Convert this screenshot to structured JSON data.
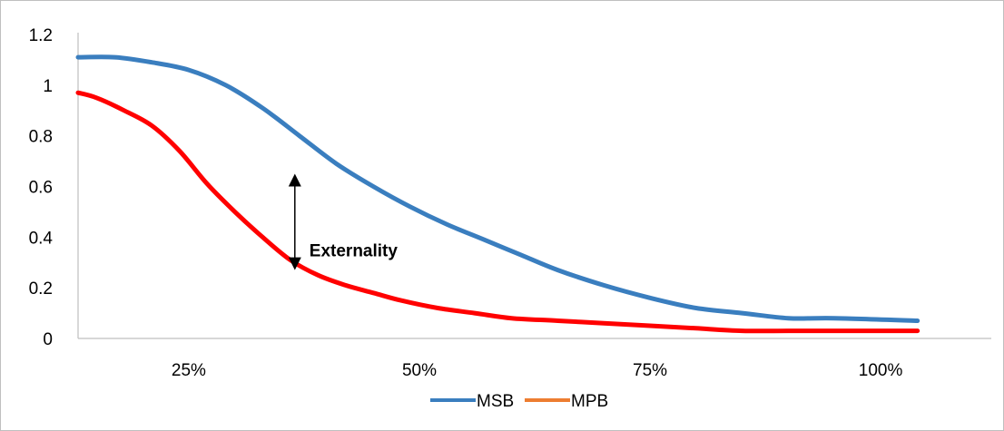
{
  "chart_data": {
    "type": "line",
    "title": "",
    "xlabel": "",
    "ylabel": "",
    "x_tick_labels": [
      "25%",
      "50%",
      "75%",
      "100%"
    ],
    "x_ticks_percent": [
      25,
      50,
      75,
      100
    ],
    "xlim_percent": [
      13,
      112
    ],
    "y_tick_labels": [
      "0",
      "0.2",
      "0.4",
      "0.6",
      "0.8",
      "1",
      "1.2"
    ],
    "y_ticks": [
      0,
      0.2,
      0.4,
      0.6,
      0.8,
      1,
      1.2
    ],
    "ylim": [
      0,
      1.2
    ],
    "grid": false,
    "legend_position": "bottom",
    "series": [
      {
        "name": "MSB",
        "color": "#3a7ebf",
        "x": [
          13,
          17,
          21,
          25,
          29,
          33,
          37,
          41,
          45,
          49,
          53,
          57,
          61,
          65,
          70,
          75,
          80,
          85,
          90,
          95,
          104
        ],
        "values": [
          1.11,
          1.11,
          1.09,
          1.06,
          1.0,
          0.91,
          0.8,
          0.69,
          0.6,
          0.52,
          0.45,
          0.39,
          0.33,
          0.27,
          0.21,
          0.16,
          0.12,
          0.1,
          0.08,
          0.08,
          0.07
        ]
      },
      {
        "name": "MPB",
        "color": "#ff0000",
        "legend_color": "#ed7d31",
        "x": [
          13,
          15,
          18,
          21,
          24,
          27,
          30,
          33,
          36,
          39,
          42,
          45,
          48,
          52,
          56,
          60,
          65,
          70,
          75,
          80,
          85,
          90,
          95,
          104
        ],
        "values": [
          0.97,
          0.95,
          0.9,
          0.84,
          0.74,
          0.61,
          0.5,
          0.4,
          0.31,
          0.25,
          0.21,
          0.18,
          0.15,
          0.12,
          0.1,
          0.08,
          0.07,
          0.06,
          0.05,
          0.04,
          0.03,
          0.03,
          0.03,
          0.03
        ]
      }
    ],
    "annotations": [
      {
        "text": "Externality",
        "x": 36.5,
        "y_from": 0.27,
        "y_to": 0.65
      }
    ]
  }
}
